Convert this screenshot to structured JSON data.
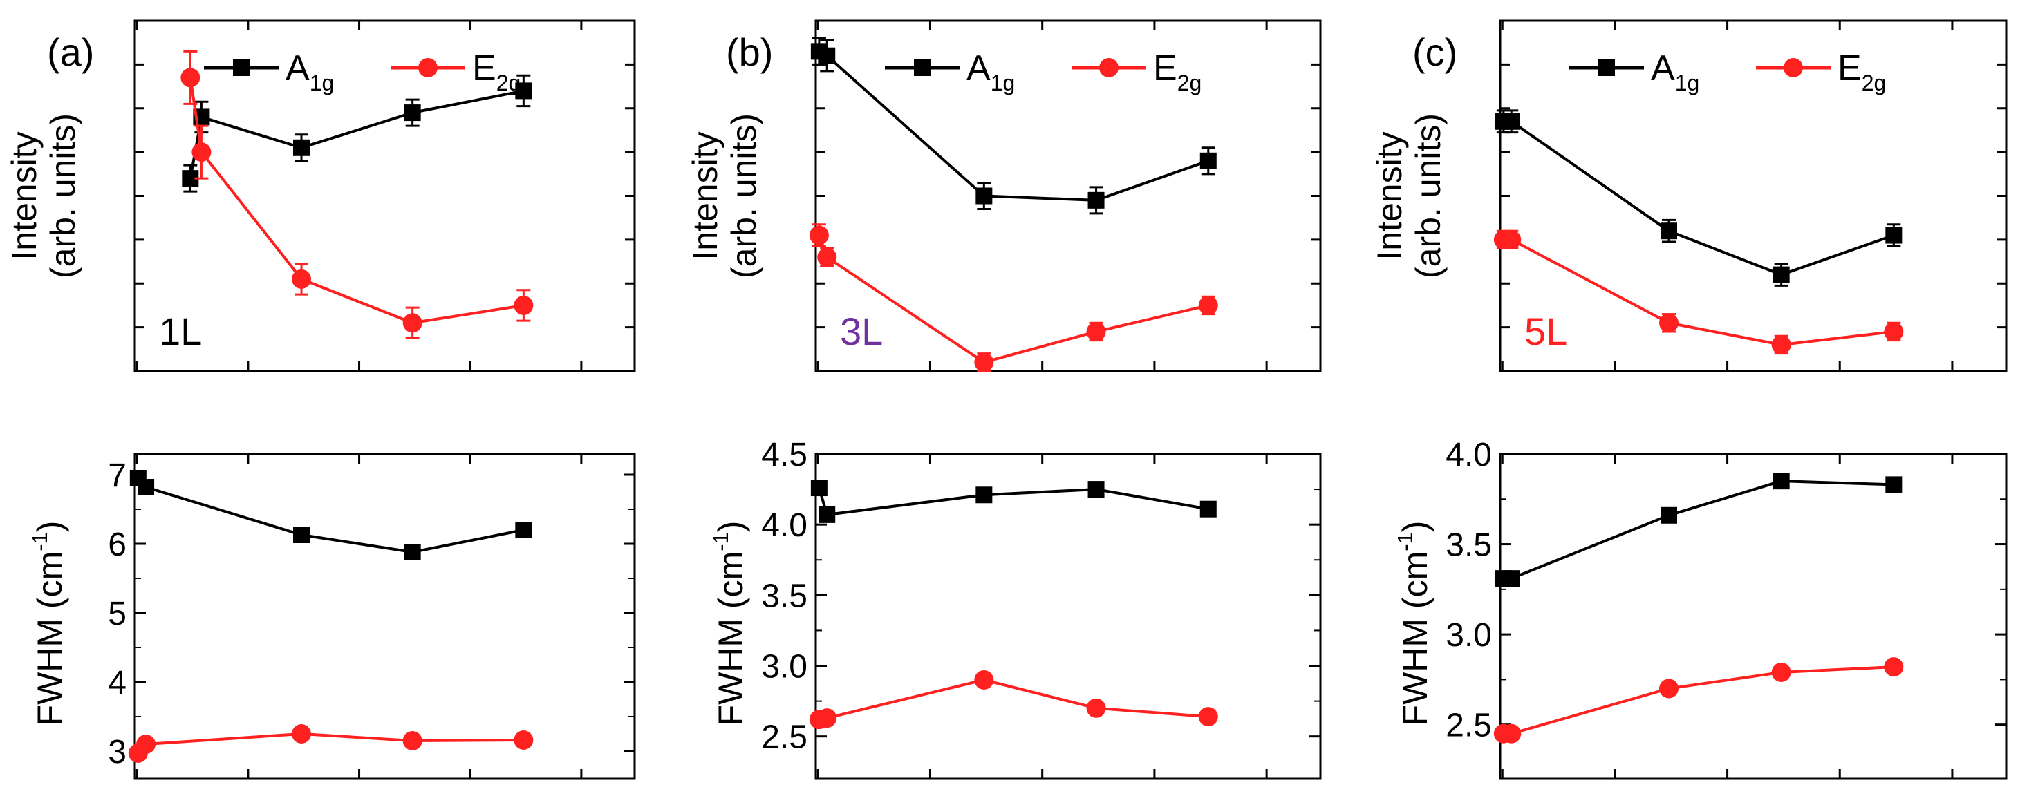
{
  "chart_data": [
    {
      "id": "a-intensity",
      "type": "line",
      "panel_label": "(a)",
      "layer_label": "1L",
      "layer_label_color": "#000000",
      "ylabel": [
        "Intensity",
        "(arb. units)"
      ],
      "ytick_labels": false,
      "xlim": [
        0,
        4.5
      ],
      "ylim": [
        0,
        8
      ],
      "x": [
        0.5,
        0.6,
        1.5,
        2.5,
        3.5
      ],
      "legend": true,
      "series": [
        {
          "name": "A_1g",
          "color": "#000000",
          "marker": "square",
          "values": [
            4.4,
            5.8,
            5.1,
            5.9,
            6.4
          ],
          "errors": [
            0.3,
            0.35,
            0.3,
            0.3,
            0.35
          ]
        },
        {
          "name": "E_2g",
          "color": "#ff2020",
          "marker": "circle",
          "values": [
            6.7,
            5.0,
            2.1,
            1.1,
            1.5
          ],
          "errors": [
            0.6,
            0.6,
            0.35,
            0.35,
            0.35
          ]
        }
      ]
    },
    {
      "id": "b-intensity",
      "type": "line",
      "panel_label": "(b)",
      "layer_label": "3L",
      "layer_label_color": "#7030a0",
      "ylabel": [
        "Intensity",
        "(arb. units)"
      ],
      "ytick_labels": false,
      "xlim": [
        0,
        4.5
      ],
      "ylim": [
        0,
        8
      ],
      "x": [
        0.03,
        0.1,
        1.5,
        2.5,
        3.5
      ],
      "legend": true,
      "series": [
        {
          "name": "A_1g",
          "color": "#000000",
          "marker": "square",
          "values": [
            7.3,
            7.2,
            4.0,
            3.9,
            4.8
          ],
          "errors": [
            0.3,
            0.35,
            0.3,
            0.3,
            0.3
          ]
        },
        {
          "name": "E_2g",
          "color": "#ff2020",
          "marker": "circle",
          "values": [
            3.1,
            2.6,
            0.2,
            0.9,
            1.5
          ],
          "errors": [
            0.25,
            0.2,
            0.2,
            0.2,
            0.2
          ]
        }
      ]
    },
    {
      "id": "c-intensity",
      "type": "line",
      "panel_label": "(c)",
      "layer_label": "5L",
      "layer_label_color": "#ff2020",
      "ylabel": [
        "Intensity",
        "(arb. units)"
      ],
      "ytick_labels": false,
      "xlim": [
        0,
        4.5
      ],
      "ylim": [
        0,
        8
      ],
      "x": [
        0.03,
        0.1,
        1.5,
        2.5,
        3.5
      ],
      "legend": true,
      "series": [
        {
          "name": "A_1g",
          "color": "#000000",
          "marker": "square",
          "values": [
            5.7,
            5.7,
            3.2,
            2.2,
            3.1
          ],
          "errors": [
            0.25,
            0.25,
            0.25,
            0.25,
            0.25
          ]
        },
        {
          "name": "E_2g",
          "color": "#ff2020",
          "marker": "circle",
          "values": [
            3.0,
            3.0,
            1.1,
            0.6,
            0.9
          ],
          "errors": [
            0.2,
            0.2,
            0.2,
            0.2,
            0.2
          ]
        }
      ]
    },
    {
      "id": "a-fwhm",
      "type": "line",
      "ylabel": [
        "FWHM (cm^-1)"
      ],
      "ytick_labels": true,
      "yticks": [
        3,
        4,
        5,
        6,
        7
      ],
      "ytick_text": [
        "3",
        "4",
        "5",
        "6",
        "7"
      ],
      "xlim": [
        0,
        4.5
      ],
      "ylim": [
        2.6,
        7.3
      ],
      "x": [
        0.03,
        0.1,
        1.5,
        2.5,
        3.5
      ],
      "legend": false,
      "series": [
        {
          "name": "A_1g",
          "color": "#000000",
          "marker": "square",
          "values": [
            6.95,
            6.82,
            6.13,
            5.88,
            6.2
          ],
          "errors": [
            0.1,
            0.1,
            0.1,
            0.1,
            0.1
          ]
        },
        {
          "name": "E_2g",
          "color": "#ff2020",
          "marker": "circle",
          "values": [
            2.97,
            3.1,
            3.25,
            3.15,
            3.16
          ],
          "errors": [
            0.08,
            0.08,
            0.08,
            0.08,
            0.08
          ]
        }
      ]
    },
    {
      "id": "b-fwhm",
      "type": "line",
      "ylabel": [
        "FWHM (cm^-1)"
      ],
      "ytick_labels": true,
      "yticks": [
        2.5,
        3.0,
        3.5,
        4.0,
        4.5
      ],
      "ytick_text": [
        "2.5",
        "3.0",
        "3.5",
        "4.0",
        "4.5"
      ],
      "xlim": [
        0,
        4.5
      ],
      "ylim": [
        2.2,
        4.5
      ],
      "x": [
        0.03,
        0.1,
        1.5,
        2.5,
        3.5
      ],
      "legend": false,
      "series": [
        {
          "name": "A_1g",
          "color": "#000000",
          "marker": "square",
          "values": [
            4.26,
            4.07,
            4.21,
            4.25,
            4.11
          ],
          "errors": [
            0.03,
            0.03,
            0.03,
            0.03,
            0.03
          ]
        },
        {
          "name": "E_2g",
          "color": "#ff2020",
          "marker": "circle",
          "values": [
            2.62,
            2.63,
            2.9,
            2.7,
            2.64
          ],
          "errors": [
            0.03,
            0.03,
            0.03,
            0.03,
            0.03
          ]
        }
      ]
    },
    {
      "id": "c-fwhm",
      "type": "line",
      "ylabel": [
        "FWHM (cm^-1)"
      ],
      "ytick_labels": true,
      "yticks": [
        2.5,
        3.0,
        3.5,
        4.0
      ],
      "ytick_text": [
        "2.5",
        "3.0",
        "3.5",
        "4.0"
      ],
      "xlim": [
        0,
        4.5
      ],
      "ylim": [
        2.2,
        4.0
      ],
      "x": [
        0.03,
        0.1,
        1.5,
        2.5,
        3.5
      ],
      "legend": false,
      "series": [
        {
          "name": "A_1g",
          "color": "#000000",
          "marker": "square",
          "values": [
            3.31,
            3.31,
            3.66,
            3.85,
            3.83
          ],
          "errors": [
            0.03,
            0.03,
            0.03,
            0.03,
            0.03
          ]
        },
        {
          "name": "E_2g",
          "color": "#ff2020",
          "marker": "circle",
          "values": [
            2.45,
            2.45,
            2.7,
            2.79,
            2.82
          ],
          "errors": [
            0.03,
            0.03,
            0.03,
            0.03,
            0.03
          ]
        }
      ]
    }
  ],
  "colors": {
    "a1g": "#000000",
    "e2g": "#ff2020",
    "label_3L": "#7030a0",
    "label_5L": "#ff2020"
  }
}
